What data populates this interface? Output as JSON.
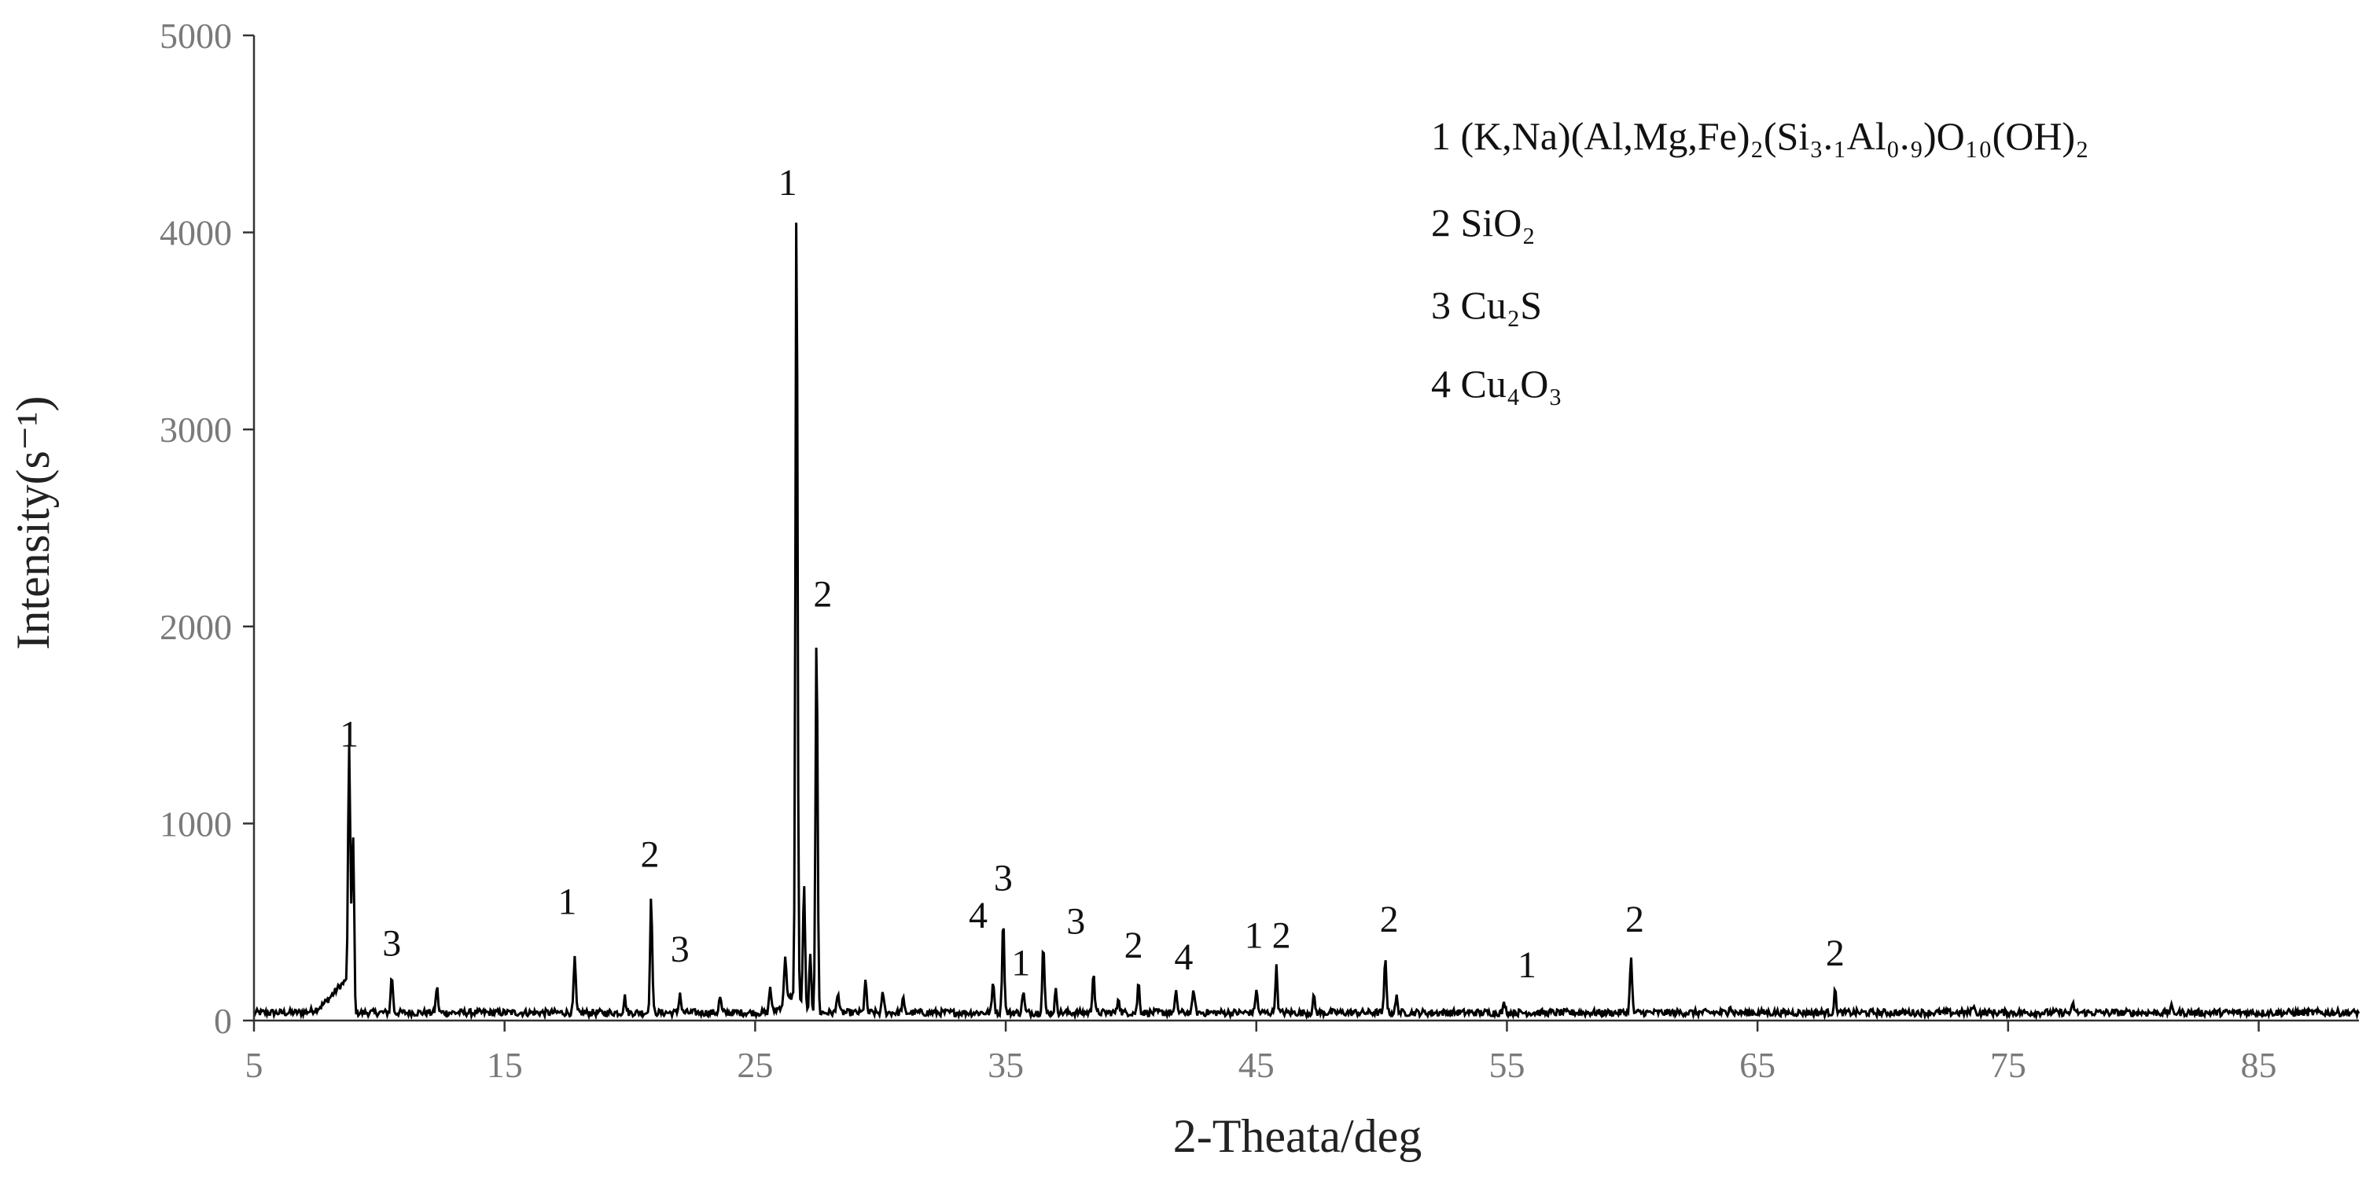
{
  "chart_data": {
    "type": "line",
    "title": "",
    "xlabel": "2-Theata/deg",
    "ylabel": "Intensity(s⁻¹)",
    "xlim": [
      5,
      89
    ],
    "ylim": [
      0,
      5000
    ],
    "x_ticks": [
      "5",
      "15",
      "25",
      "35",
      "45",
      "55",
      "65",
      "75",
      "85"
    ],
    "y_ticks": [
      "0",
      "1000",
      "2000",
      "3000",
      "4000",
      "5000"
    ],
    "grid": false,
    "legend_position": "top-right",
    "legend": [
      "1 (K,Na)(Al,Mg,Fe)₂(Si₃.₁Al₀.₉)O₁₀(OH)₂",
      "2 SiO₂",
      "3 Cu₂S",
      "4 Cu₄O₃"
    ],
    "baseline": 40,
    "peaks": [
      {
        "x": 8.8,
        "y": 1240
      },
      {
        "x": 8.95,
        "y": 780
      },
      {
        "x": 10.5,
        "y": 230
      },
      {
        "x": 12.3,
        "y": 170
      },
      {
        "x": 17.8,
        "y": 310
      },
      {
        "x": 19.8,
        "y": 120
      },
      {
        "x": 20.85,
        "y": 620
      },
      {
        "x": 22.0,
        "y": 140
      },
      {
        "x": 23.6,
        "y": 120
      },
      {
        "x": 25.6,
        "y": 170
      },
      {
        "x": 26.2,
        "y": 280
      },
      {
        "x": 26.65,
        "y": 4100
      },
      {
        "x": 26.95,
        "y": 650
      },
      {
        "x": 27.2,
        "y": 320
      },
      {
        "x": 27.45,
        "y": 1950
      },
      {
        "x": 28.3,
        "y": 150
      },
      {
        "x": 29.4,
        "y": 200
      },
      {
        "x": 30.1,
        "y": 140
      },
      {
        "x": 30.9,
        "y": 110
      },
      {
        "x": 34.5,
        "y": 200
      },
      {
        "x": 34.9,
        "y": 510
      },
      {
        "x": 35.7,
        "y": 150
      },
      {
        "x": 36.5,
        "y": 380
      },
      {
        "x": 37.0,
        "y": 150
      },
      {
        "x": 38.5,
        "y": 250
      },
      {
        "x": 39.5,
        "y": 120
      },
      {
        "x": 40.3,
        "y": 190
      },
      {
        "x": 41.8,
        "y": 140
      },
      {
        "x": 42.5,
        "y": 160
      },
      {
        "x": 45.0,
        "y": 160
      },
      {
        "x": 45.8,
        "y": 270
      },
      {
        "x": 47.3,
        "y": 120
      },
      {
        "x": 50.15,
        "y": 320
      },
      {
        "x": 50.6,
        "y": 120
      },
      {
        "x": 54.9,
        "y": 90
      },
      {
        "x": 59.95,
        "y": 320
      },
      {
        "x": 63.9,
        "y": 80
      },
      {
        "x": 68.1,
        "y": 150
      },
      {
        "x": 73.6,
        "y": 80
      },
      {
        "x": 77.6,
        "y": 80
      },
      {
        "x": 81.5,
        "y": 70
      }
    ],
    "peak_labels": [
      {
        "text": "1",
        "x": 8.8,
        "y": 1390
      },
      {
        "text": "3",
        "x": 10.5,
        "y": 330
      },
      {
        "text": "1",
        "x": 17.5,
        "y": 540
      },
      {
        "text": "2",
        "x": 20.8,
        "y": 780
      },
      {
        "text": "3",
        "x": 22.0,
        "y": 300
      },
      {
        "text": "1",
        "x": 26.3,
        "y": 4190
      },
      {
        "text": "2",
        "x": 27.7,
        "y": 2100
      },
      {
        "text": "4",
        "x": 33.9,
        "y": 470
      },
      {
        "text": "3",
        "x": 34.9,
        "y": 660
      },
      {
        "text": "1",
        "x": 35.6,
        "y": 230
      },
      {
        "text": "3",
        "x": 37.8,
        "y": 440
      },
      {
        "text": "2",
        "x": 40.1,
        "y": 320
      },
      {
        "text": "4",
        "x": 42.1,
        "y": 260
      },
      {
        "text": "1",
        "x": 44.9,
        "y": 370
      },
      {
        "text": "2",
        "x": 46.0,
        "y": 370
      },
      {
        "text": "2",
        "x": 50.3,
        "y": 450
      },
      {
        "text": "1",
        "x": 55.8,
        "y": 220
      },
      {
        "text": "2",
        "x": 60.1,
        "y": 450
      },
      {
        "text": "2",
        "x": 68.1,
        "y": 280
      }
    ]
  }
}
